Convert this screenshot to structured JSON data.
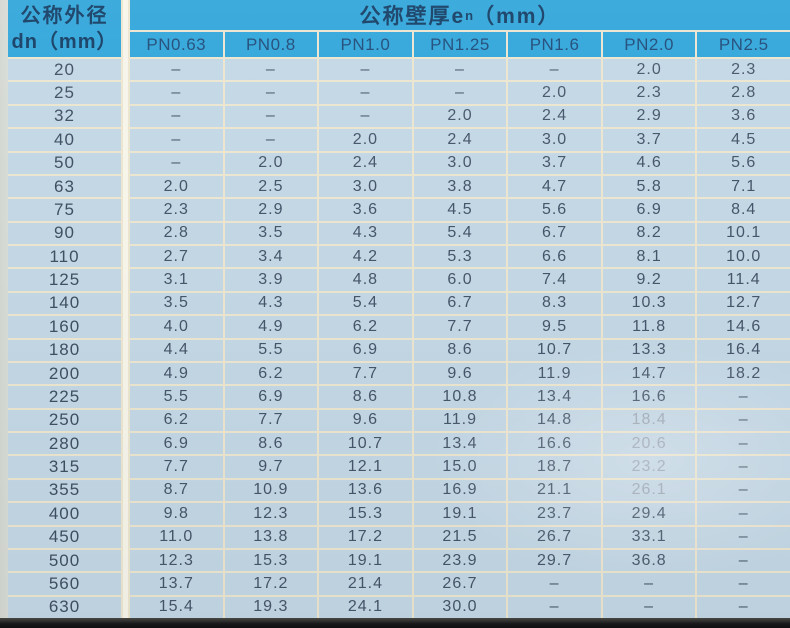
{
  "table": {
    "row_header": {
      "line1": "公称外径",
      "line2": "dn（mm）"
    },
    "col_group_header": {
      "prefix": "公称壁厚e",
      "sub": "n",
      "suffix": "（mm）"
    },
    "columns": [
      "PN0.63",
      "PN0.8",
      "PN1.0",
      "PN1.25",
      "PN1.6",
      "PN2.0",
      "PN2.5"
    ],
    "rows": [
      {
        "dn": "20",
        "values": [
          "–",
          "–",
          "–",
          "–",
          "–",
          "2.0",
          "2.3"
        ]
      },
      {
        "dn": "25",
        "values": [
          "–",
          "–",
          "–",
          "–",
          "2.0",
          "2.3",
          "2.8"
        ]
      },
      {
        "dn": "32",
        "values": [
          "–",
          "–",
          "–",
          "2.0",
          "2.4",
          "2.9",
          "3.6"
        ]
      },
      {
        "dn": "40",
        "values": [
          "–",
          "–",
          "2.0",
          "2.4",
          "3.0",
          "3.7",
          "4.5"
        ]
      },
      {
        "dn": "50",
        "values": [
          "–",
          "2.0",
          "2.4",
          "3.0",
          "3.7",
          "4.6",
          "5.6"
        ]
      },
      {
        "dn": "63",
        "values": [
          "2.0",
          "2.5",
          "3.0",
          "3.8",
          "4.7",
          "5.8",
          "7.1"
        ]
      },
      {
        "dn": "75",
        "values": [
          "2.3",
          "2.9",
          "3.6",
          "4.5",
          "5.6",
          "6.9",
          "8.4"
        ]
      },
      {
        "dn": "90",
        "values": [
          "2.8",
          "3.5",
          "4.3",
          "5.4",
          "6.7",
          "8.2",
          "10.1"
        ]
      },
      {
        "dn": "110",
        "values": [
          "2.7",
          "3.4",
          "4.2",
          "5.3",
          "6.6",
          "8.1",
          "10.0"
        ]
      },
      {
        "dn": "125",
        "values": [
          "3.1",
          "3.9",
          "4.8",
          "6.0",
          "7.4",
          "9.2",
          "11.4"
        ]
      },
      {
        "dn": "140",
        "values": [
          "3.5",
          "4.3",
          "5.4",
          "6.7",
          "8.3",
          "10.3",
          "12.7"
        ]
      },
      {
        "dn": "160",
        "values": [
          "4.0",
          "4.9",
          "6.2",
          "7.7",
          "9.5",
          "11.8",
          "14.6"
        ]
      },
      {
        "dn": "180",
        "values": [
          "4.4",
          "5.5",
          "6.9",
          "8.6",
          "10.7",
          "13.3",
          "16.4"
        ]
      },
      {
        "dn": "200",
        "values": [
          "4.9",
          "6.2",
          "7.7",
          "9.6",
          "11.9",
          "14.7",
          "18.2"
        ]
      },
      {
        "dn": "225",
        "values": [
          "5.5",
          "6.9",
          "8.6",
          "10.8",
          "13.4",
          "16.6",
          "–"
        ]
      },
      {
        "dn": "250",
        "values": [
          "6.2",
          "7.7",
          "9.6",
          "11.9",
          "14.8",
          "18.4",
          "–"
        ]
      },
      {
        "dn": "280",
        "values": [
          "6.9",
          "8.6",
          "10.7",
          "13.4",
          "16.6",
          "20.6",
          "–"
        ]
      },
      {
        "dn": "315",
        "values": [
          "7.7",
          "9.7",
          "12.1",
          "15.0",
          "18.7",
          "23.2",
          "–"
        ]
      },
      {
        "dn": "355",
        "values": [
          "8.7",
          "10.9",
          "13.6",
          "16.9",
          "21.1",
          "26.1",
          "–"
        ]
      },
      {
        "dn": "400",
        "values": [
          "9.8",
          "12.3",
          "15.3",
          "19.1",
          "23.7",
          "29.4",
          "–"
        ]
      },
      {
        "dn": "450",
        "values": [
          "11.0",
          "13.8",
          "17.2",
          "21.5",
          "26.7",
          "33.1",
          "–"
        ]
      },
      {
        "dn": "500",
        "values": [
          "12.3",
          "15.3",
          "19.1",
          "23.9",
          "29.7",
          "36.8",
          "–"
        ]
      },
      {
        "dn": "560",
        "values": [
          "13.7",
          "17.2",
          "21.4",
          "26.7",
          "–",
          "–",
          "–"
        ]
      },
      {
        "dn": "630",
        "values": [
          "15.4",
          "19.3",
          "24.1",
          "30.0",
          "–",
          "–",
          "–"
        ]
      }
    ],
    "faded_cells": [
      [
        15,
        5
      ],
      [
        16,
        5
      ],
      [
        17,
        5
      ],
      [
        18,
        5
      ]
    ]
  },
  "colors": {
    "header_bg": "#2fa5da",
    "cell_bg": "#c3d7e5",
    "grid_line": "#ece5cf",
    "divider": "#f7f4ea",
    "header_text": "#123c63",
    "pn_text": "#1d4a78",
    "cell_text": "#46566a",
    "dn_text": "#3f5063"
  }
}
